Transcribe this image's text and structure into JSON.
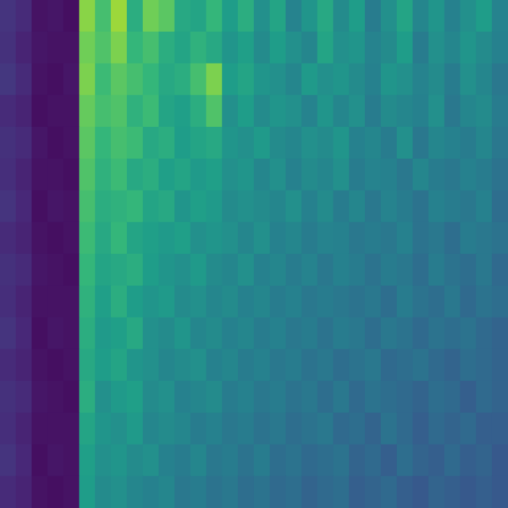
{
  "chart_data": {
    "type": "heatmap",
    "color": "viridis",
    "tick_labels": false,
    "grid": false,
    "zlim": [
      0,
      1
    ],
    "cells": [
      [
        0.15,
        0.12,
        0.05,
        0.06,
        0.04,
        0.82,
        0.7,
        0.85,
        0.62,
        0.78,
        0.74,
        0.6,
        0.58,
        0.66,
        0.55,
        0.62,
        0.5,
        0.58,
        0.45,
        0.52,
        0.6,
        0.48,
        0.55,
        0.42,
        0.5,
        0.58,
        0.46,
        0.52,
        0.44,
        0.5,
        0.55,
        0.45
      ],
      [
        0.14,
        0.1,
        0.06,
        0.05,
        0.05,
        0.78,
        0.72,
        0.8,
        0.66,
        0.7,
        0.62,
        0.58,
        0.64,
        0.6,
        0.52,
        0.56,
        0.48,
        0.55,
        0.5,
        0.46,
        0.58,
        0.5,
        0.52,
        0.45,
        0.48,
        0.55,
        0.42,
        0.5,
        0.46,
        0.52,
        0.48,
        0.44
      ],
      [
        0.16,
        0.12,
        0.05,
        0.04,
        0.06,
        0.8,
        0.68,
        0.74,
        0.7,
        0.66,
        0.6,
        0.62,
        0.7,
        0.8,
        0.55,
        0.58,
        0.52,
        0.5,
        0.46,
        0.54,
        0.5,
        0.52,
        0.48,
        0.44,
        0.52,
        0.5,
        0.45,
        0.48,
        0.42,
        0.5,
        0.46,
        0.4
      ],
      [
        0.12,
        0.1,
        0.04,
        0.05,
        0.05,
        0.76,
        0.7,
        0.72,
        0.64,
        0.68,
        0.58,
        0.56,
        0.62,
        0.72,
        0.5,
        0.55,
        0.48,
        0.52,
        0.5,
        0.45,
        0.52,
        0.46,
        0.5,
        0.42,
        0.48,
        0.46,
        0.44,
        0.5,
        0.4,
        0.46,
        0.48,
        0.42
      ],
      [
        0.14,
        0.12,
        0.06,
        0.04,
        0.05,
        0.74,
        0.66,
        0.7,
        0.68,
        0.6,
        0.62,
        0.55,
        0.58,
        0.6,
        0.52,
        0.5,
        0.54,
        0.48,
        0.46,
        0.5,
        0.48,
        0.52,
        0.44,
        0.46,
        0.42,
        0.5,
        0.4,
        0.46,
        0.44,
        0.42,
        0.46,
        0.4
      ],
      [
        0.13,
        0.1,
        0.05,
        0.05,
        0.04,
        0.72,
        0.64,
        0.68,
        0.6,
        0.62,
        0.56,
        0.58,
        0.54,
        0.56,
        0.5,
        0.52,
        0.46,
        0.5,
        0.44,
        0.48,
        0.46,
        0.5,
        0.42,
        0.45,
        0.44,
        0.4,
        0.46,
        0.42,
        0.4,
        0.44,
        0.42,
        0.38
      ],
      [
        0.15,
        0.11,
        0.04,
        0.06,
        0.05,
        0.7,
        0.62,
        0.64,
        0.66,
        0.58,
        0.6,
        0.52,
        0.56,
        0.54,
        0.48,
        0.5,
        0.48,
        0.46,
        0.5,
        0.44,
        0.48,
        0.42,
        0.46,
        0.4,
        0.45,
        0.42,
        0.38,
        0.44,
        0.42,
        0.4,
        0.44,
        0.36
      ],
      [
        0.12,
        0.1,
        0.05,
        0.04,
        0.05,
        0.68,
        0.6,
        0.66,
        0.58,
        0.56,
        0.54,
        0.56,
        0.5,
        0.52,
        0.5,
        0.46,
        0.5,
        0.44,
        0.46,
        0.42,
        0.45,
        0.44,
        0.4,
        0.42,
        0.4,
        0.44,
        0.38,
        0.4,
        0.36,
        0.42,
        0.4,
        0.38
      ],
      [
        0.14,
        0.12,
        0.06,
        0.05,
        0.04,
        0.66,
        0.58,
        0.6,
        0.62,
        0.55,
        0.52,
        0.5,
        0.54,
        0.48,
        0.46,
        0.5,
        0.44,
        0.46,
        0.42,
        0.45,
        0.4,
        0.44,
        0.42,
        0.38,
        0.42,
        0.4,
        0.36,
        0.42,
        0.38,
        0.36,
        0.4,
        0.34
      ],
      [
        0.13,
        0.1,
        0.05,
        0.05,
        0.05,
        0.64,
        0.56,
        0.62,
        0.55,
        0.52,
        0.54,
        0.48,
        0.5,
        0.46,
        0.48,
        0.44,
        0.46,
        0.42,
        0.44,
        0.4,
        0.42,
        0.4,
        0.38,
        0.4,
        0.36,
        0.42,
        0.38,
        0.36,
        0.4,
        0.34,
        0.38,
        0.36
      ],
      [
        0.15,
        0.11,
        0.04,
        0.06,
        0.05,
        0.62,
        0.54,
        0.56,
        0.6,
        0.5,
        0.48,
        0.52,
        0.46,
        0.48,
        0.44,
        0.46,
        0.42,
        0.44,
        0.4,
        0.42,
        0.38,
        0.42,
        0.4,
        0.36,
        0.4,
        0.38,
        0.34,
        0.38,
        0.36,
        0.38,
        0.34,
        0.32
      ],
      [
        0.12,
        0.1,
        0.05,
        0.04,
        0.05,
        0.6,
        0.55,
        0.58,
        0.52,
        0.5,
        0.46,
        0.48,
        0.5,
        0.44,
        0.46,
        0.42,
        0.44,
        0.4,
        0.42,
        0.38,
        0.4,
        0.36,
        0.38,
        0.4,
        0.34,
        0.36,
        0.38,
        0.34,
        0.32,
        0.36,
        0.34,
        0.32
      ],
      [
        0.14,
        0.12,
        0.06,
        0.05,
        0.04,
        0.62,
        0.5,
        0.54,
        0.56,
        0.48,
        0.5,
        0.44,
        0.46,
        0.48,
        0.42,
        0.44,
        0.4,
        0.42,
        0.38,
        0.4,
        0.36,
        0.4,
        0.34,
        0.38,
        0.36,
        0.34,
        0.32,
        0.36,
        0.34,
        0.3,
        0.34,
        0.32
      ],
      [
        0.13,
        0.1,
        0.05,
        0.05,
        0.05,
        0.58,
        0.52,
        0.5,
        0.54,
        0.46,
        0.48,
        0.46,
        0.42,
        0.44,
        0.4,
        0.42,
        0.38,
        0.4,
        0.36,
        0.38,
        0.4,
        0.34,
        0.36,
        0.32,
        0.38,
        0.34,
        0.3,
        0.34,
        0.32,
        0.34,
        0.3,
        0.3
      ],
      [
        0.15,
        0.11,
        0.04,
        0.06,
        0.05,
        0.56,
        0.5,
        0.52,
        0.48,
        0.5,
        0.44,
        0.42,
        0.46,
        0.4,
        0.42,
        0.38,
        0.42,
        0.36,
        0.38,
        0.34,
        0.36,
        0.38,
        0.32,
        0.34,
        0.3,
        0.36,
        0.32,
        0.3,
        0.34,
        0.3,
        0.32,
        0.28
      ],
      [
        0.12,
        0.1,
        0.05,
        0.04,
        0.05,
        0.55,
        0.48,
        0.5,
        0.46,
        0.44,
        0.46,
        0.4,
        0.42,
        0.38,
        0.4,
        0.36,
        0.38,
        0.34,
        0.36,
        0.32,
        0.34,
        0.36,
        0.3,
        0.32,
        0.34,
        0.3,
        0.28,
        0.32,
        0.3,
        0.28,
        0.3,
        0.28
      ]
    ]
  }
}
